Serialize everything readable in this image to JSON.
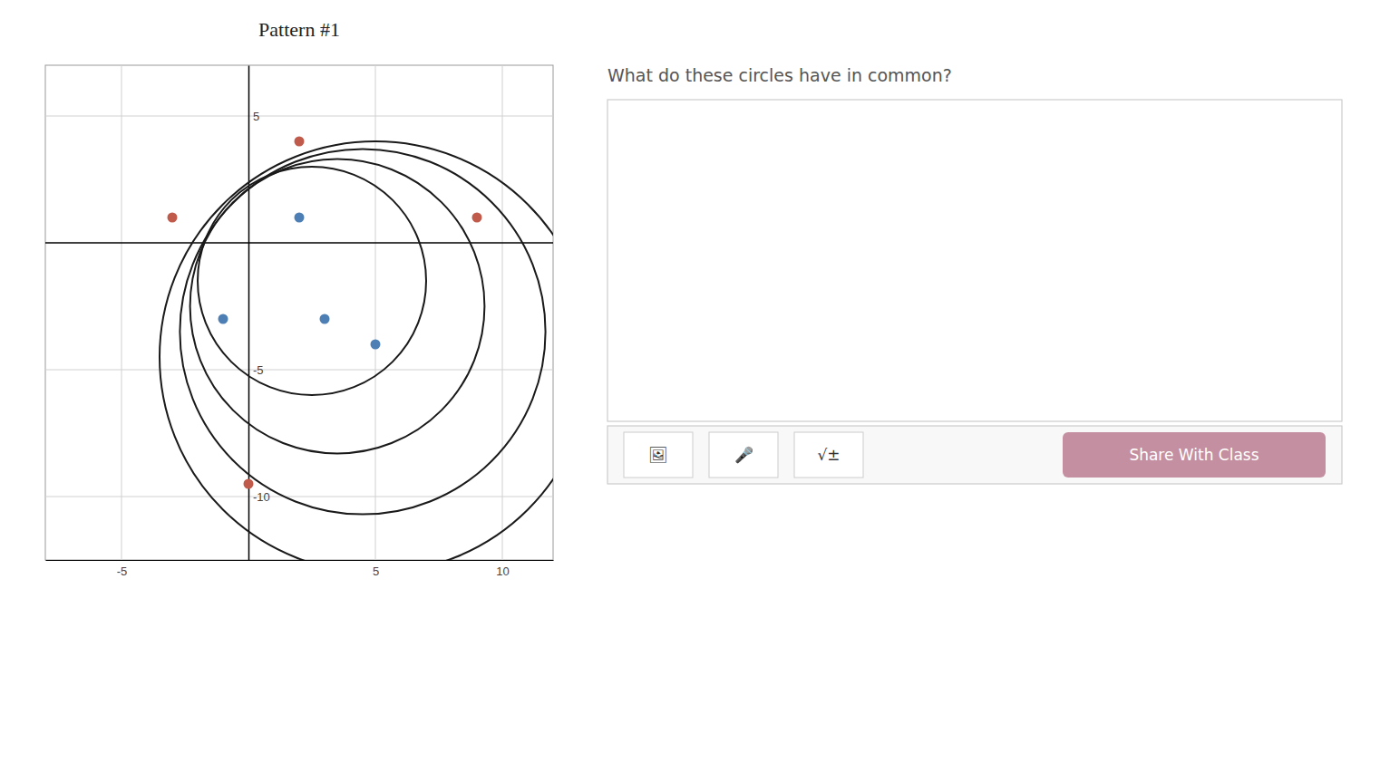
{
  "chart_data": {
    "type": "scatter",
    "title": "Pattern #1",
    "xlim": [
      -8,
      12
    ],
    "ylim": [
      -12.5,
      7
    ],
    "xticks": [
      -5,
      5,
      10
    ],
    "yticks": [
      -10,
      -5,
      5
    ],
    "grid": true,
    "series": [
      {
        "type": "circle",
        "color": "#1a1a1a",
        "x": [
          2.5,
          3.5,
          4.5,
          5.0
        ],
        "values": [
          -1.5,
          -2.5,
          -3.5,
          -4.5
        ],
        "radius": [
          4.5,
          5.8,
          7.2,
          8.5
        ]
      },
      {
        "type": "scatter",
        "color": "#4d7fb5",
        "x": [
          2,
          -1,
          3,
          5
        ],
        "values": [
          1,
          -3,
          -3,
          -4
        ]
      },
      {
        "type": "scatter",
        "color": "#c05a4a",
        "x": [
          -3,
          2,
          9,
          0
        ],
        "values": [
          1,
          4,
          1,
          -9.5
        ]
      }
    ],
    "annotations": [
      "What do these circles have in common?",
      "🖼",
      "🎤",
      "√±",
      "Share With Class"
    ]
  }
}
